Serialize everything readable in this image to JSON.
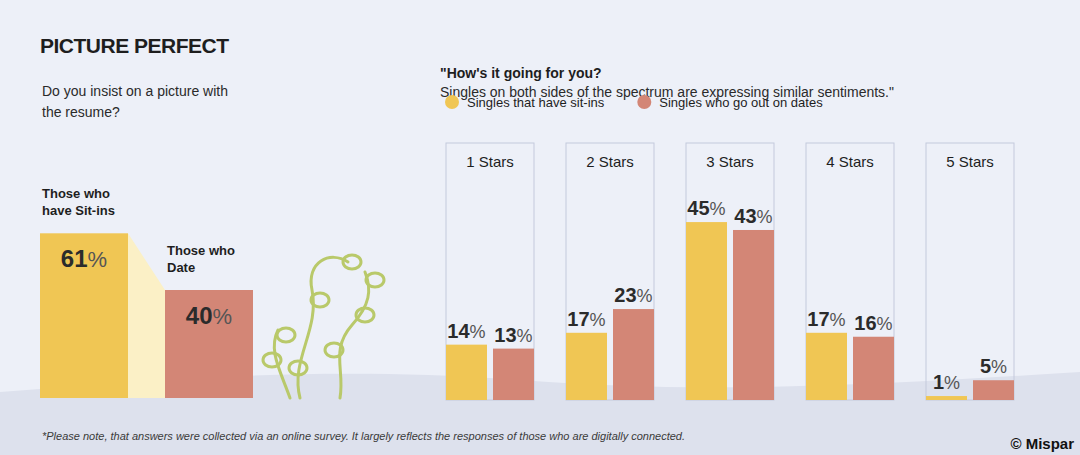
{
  "chart_data": [
    {
      "type": "bar",
      "title": "PICTURE PERFECT",
      "subtitle": "Do you insist on a picture with the resume?",
      "categories": [
        "Those who have Sit-ins",
        "Those who Date"
      ],
      "values": [
        61,
        40
      ],
      "value_labels": [
        "61%",
        "40%"
      ],
      "colors": [
        "#f0c654",
        "#d38676"
      ],
      "ylim": [
        0,
        100
      ],
      "data_labels": true,
      "tick_labels": "x"
    },
    {
      "type": "bar",
      "title": "\"How's it going for you?",
      "subtitle": "Singles on both sides of the spectrum are expressing similar sentiments.\"",
      "categories": [
        "1 Stars",
        "2 Stars",
        "3 Stars",
        "4 Stars",
        "5 Stars"
      ],
      "series": [
        {
          "name": "Singles that have sit-ins",
          "color": "#f0c654",
          "values": [
            14,
            17,
            45,
            17,
            1
          ],
          "value_labels": [
            "14%",
            "17%",
            "45%",
            "17%",
            "1%"
          ]
        },
        {
          "name": "Singles who go out on dates",
          "color": "#d38676",
          "values": [
            13,
            23,
            43,
            16,
            5
          ],
          "value_labels": [
            "13%",
            "23%",
            "43%",
            "16%",
            "5%"
          ]
        }
      ],
      "ylim": [
        0,
        65
      ],
      "legend": "top",
      "data_labels": true,
      "tick_labels": "x"
    }
  ],
  "footnote": "*Please note, that answers were collected via an online survey. It largely reflects the responses of those who are digitally connected.",
  "credit": "© Mispar"
}
